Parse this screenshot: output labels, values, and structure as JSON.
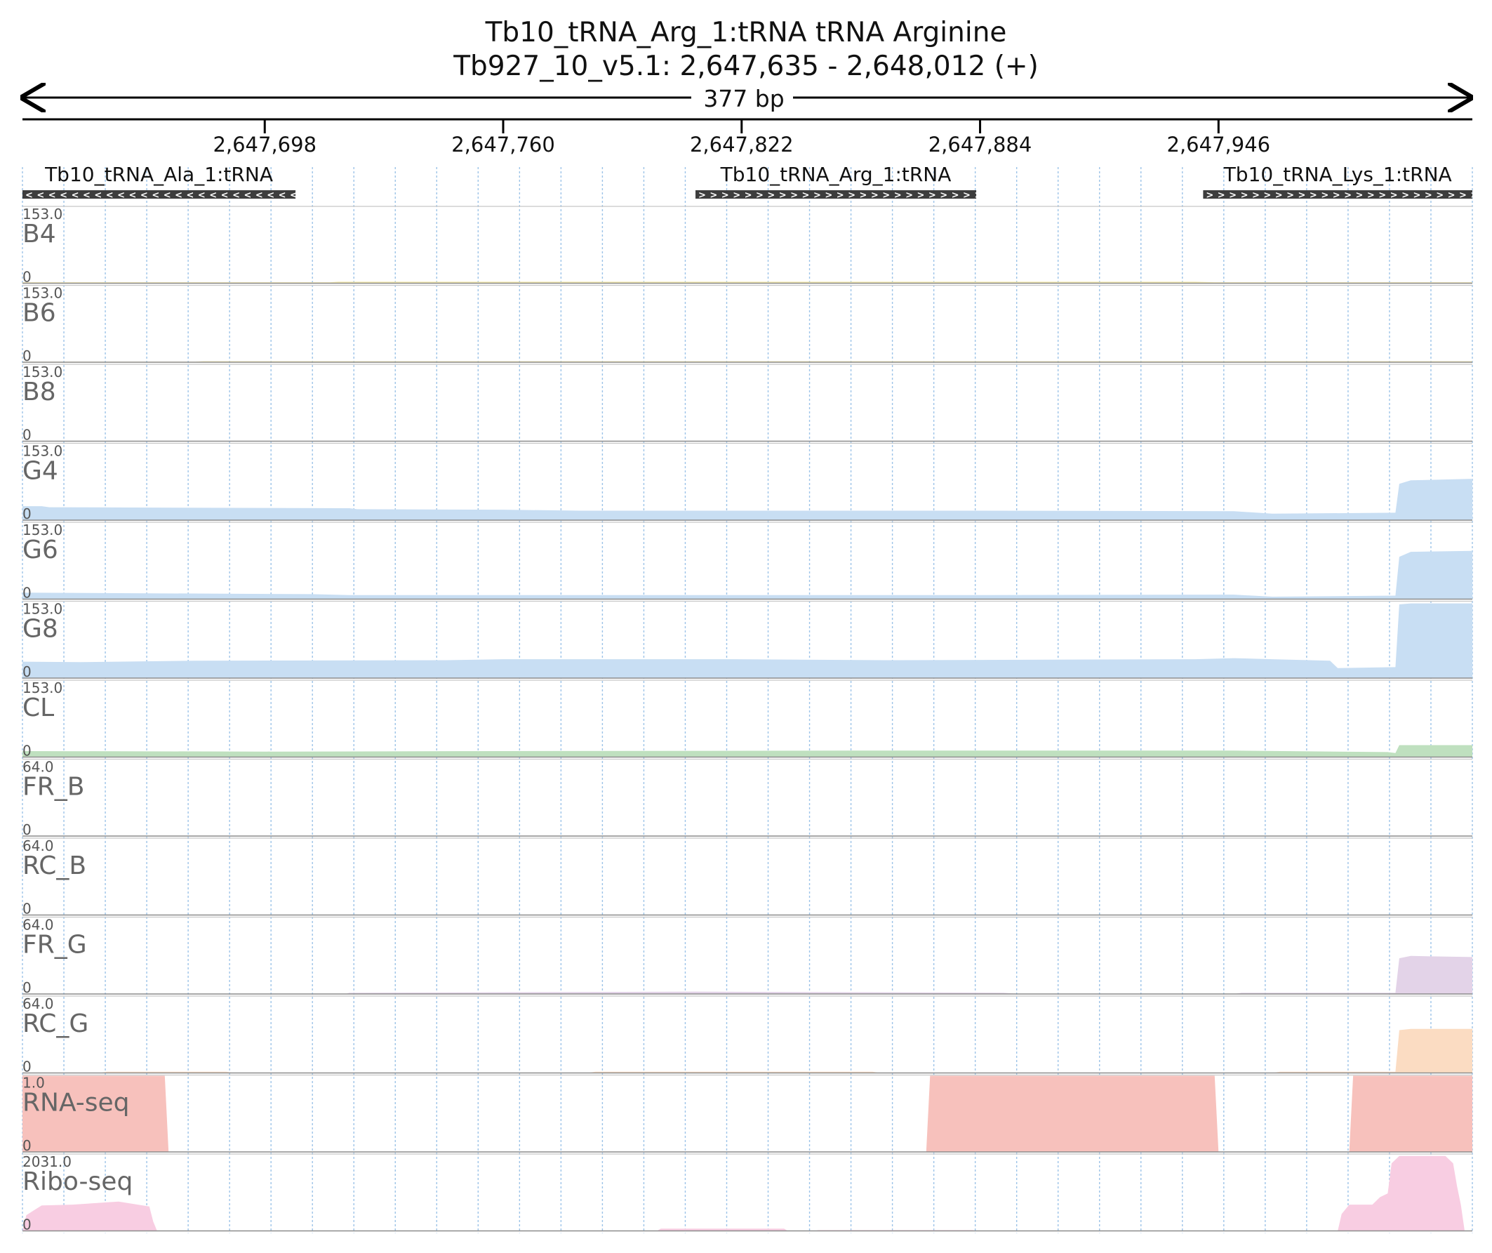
{
  "header": {
    "title": "Tb10_tRNA_Arg_1:tRNA  tRNA Arginine",
    "locus": "Tb927_10_v5.1: 2,647,635 - 2,648,012 (+)",
    "span_label": "377 bp"
  },
  "chart_data": {
    "type": "area",
    "x_range": [
      2647635,
      2648012
    ],
    "ruler_ticks": [
      2647698,
      2647760,
      2647822,
      2647884,
      2647946
    ],
    "ruler_tick_labels": [
      "2,647,698",
      "2,647,760",
      "2,647,822",
      "2,647,884",
      "2,647,946"
    ],
    "genes": [
      {
        "name": "Tb10_tRNA_Ala_1:tRNA",
        "start": 2647635,
        "end": 2647706,
        "strand": "-"
      },
      {
        "name": "Tb10_tRNA_Arg_1:tRNA",
        "start": 2647810,
        "end": 2647883,
        "strand": "+"
      },
      {
        "name": "Tb10_tRNA_Lys_1:tRNA",
        "start": 2647942,
        "end": 2648012,
        "strand": "+"
      }
    ],
    "tracks": [
      {
        "name": "B4",
        "max": "153.0",
        "min": "0",
        "color": "#f2e6a8",
        "points": [
          [
            2647635,
            2
          ],
          [
            2647715,
            2
          ],
          [
            2647717,
            3
          ],
          [
            2647940,
            3
          ],
          [
            2647945,
            2
          ],
          [
            2648012,
            2
          ]
        ]
      },
      {
        "name": "B6",
        "max": "153.0",
        "min": "0",
        "color": "#f2e6a8",
        "points": [
          [
            2647635,
            1
          ],
          [
            2647680,
            1
          ],
          [
            2647682,
            2
          ],
          [
            2648012,
            2
          ]
        ]
      },
      {
        "name": "B8",
        "max": "153.0",
        "min": "0",
        "color": "#f2e6a8",
        "points": [
          [
            2647635,
            0
          ],
          [
            2648012,
            0
          ]
        ]
      },
      {
        "name": "G4",
        "max": "153.0",
        "min": "0",
        "color": "#c8def3",
        "points": [
          [
            2647635,
            28
          ],
          [
            2647640,
            28
          ],
          [
            2647642,
            26
          ],
          [
            2647720,
            24
          ],
          [
            2647722,
            22
          ],
          [
            2647760,
            21
          ],
          [
            2647780,
            19
          ],
          [
            2647880,
            19
          ],
          [
            2647950,
            18
          ],
          [
            2647960,
            13
          ],
          [
            2647992,
            15
          ],
          [
            2647993,
            73
          ],
          [
            2647996,
            80
          ],
          [
            2648012,
            83
          ]
        ]
      },
      {
        "name": "G6",
        "max": "153.0",
        "min": "0",
        "color": "#c8def3",
        "points": [
          [
            2647635,
            13
          ],
          [
            2647660,
            12
          ],
          [
            2647710,
            10
          ],
          [
            2647720,
            8
          ],
          [
            2647880,
            8
          ],
          [
            2647950,
            9
          ],
          [
            2647960,
            5
          ],
          [
            2647992,
            7
          ],
          [
            2647993,
            85
          ],
          [
            2647996,
            95
          ],
          [
            2648012,
            97
          ]
        ]
      },
      {
        "name": "G8",
        "max": "153.0",
        "min": "0",
        "color": "#c8def3",
        "points": [
          [
            2647635,
            33
          ],
          [
            2647650,
            32
          ],
          [
            2647680,
            35
          ],
          [
            2647745,
            36
          ],
          [
            2647760,
            38
          ],
          [
            2647820,
            38
          ],
          [
            2647860,
            36
          ],
          [
            2647940,
            38
          ],
          [
            2647950,
            40
          ],
          [
            2647960,
            38
          ],
          [
            2647975,
            35
          ],
          [
            2647977,
            20
          ],
          [
            2647992,
            22
          ],
          [
            2647993,
            148
          ],
          [
            2647996,
            150
          ],
          [
            2648012,
            150
          ]
        ]
      },
      {
        "name": "CL",
        "max": "153.0",
        "min": "0",
        "color": "#bfe0bf",
        "points": [
          [
            2647635,
            12
          ],
          [
            2647700,
            11
          ],
          [
            2647760,
            12
          ],
          [
            2647850,
            13
          ],
          [
            2647950,
            13
          ],
          [
            2647990,
            10
          ],
          [
            2647992,
            8
          ],
          [
            2647993,
            24
          ],
          [
            2648012,
            24
          ]
        ]
      },
      {
        "name": "FR_B",
        "max": "64.0",
        "min": "0",
        "color": "#e3d3e8",
        "points": [
          [
            2647635,
            0
          ],
          [
            2648012,
            0
          ]
        ]
      },
      {
        "name": "RC_B",
        "max": "64.0",
        "min": "0",
        "color": "#fbdcc2",
        "points": [
          [
            2647635,
            0
          ],
          [
            2648012,
            0
          ]
        ]
      },
      {
        "name": "FR_G",
        "max": "64.0",
        "min": "0",
        "color": "#e3d3e8",
        "points": [
          [
            2647635,
            0
          ],
          [
            2647719,
            0
          ],
          [
            2647720,
            1
          ],
          [
            2647810,
            2
          ],
          [
            2647890,
            1
          ],
          [
            2647895,
            0
          ],
          [
            2647950,
            0
          ],
          [
            2647952,
            1
          ],
          [
            2647992,
            1
          ],
          [
            2647993,
            30
          ],
          [
            2647996,
            32
          ],
          [
            2648012,
            31
          ]
        ]
      },
      {
        "name": "RC_G",
        "max": "64.0",
        "min": "0",
        "color": "#fbdcc2",
        "points": [
          [
            2647635,
            0
          ],
          [
            2647655,
            0
          ],
          [
            2647657,
            1
          ],
          [
            2647688,
            1
          ],
          [
            2647690,
            0
          ],
          [
            2647782,
            0
          ],
          [
            2647784,
            1
          ],
          [
            2647856,
            1
          ],
          [
            2647858,
            0
          ],
          [
            2647960,
            0
          ],
          [
            2647962,
            1
          ],
          [
            2647992,
            1
          ],
          [
            2647993,
            36
          ],
          [
            2647996,
            37
          ],
          [
            2648012,
            37
          ]
        ]
      },
      {
        "name": "RNA-seq",
        "max": "1.0",
        "min": "0",
        "color": "#f7c1bc",
        "points": [
          [
            2647635,
            1
          ],
          [
            2647672,
            1
          ],
          [
            2647673,
            0
          ],
          [
            2647870,
            0
          ],
          [
            2647871,
            1
          ],
          [
            2647945,
            1
          ],
          [
            2647946,
            0
          ],
          [
            2647980,
            0
          ],
          [
            2647981,
            1
          ],
          [
            2648012,
            1
          ]
        ]
      },
      {
        "name": "Ribo-seq",
        "max": "2031.0",
        "min": "0",
        "color": "#f8cde2",
        "points": [
          [
            2647635,
            0
          ],
          [
            2647636,
            420
          ],
          [
            2647638,
            550
          ],
          [
            2647640,
            680
          ],
          [
            2647648,
            700
          ],
          [
            2647660,
            780
          ],
          [
            2647668,
            650
          ],
          [
            2647669,
            250
          ],
          [
            2647670,
            0
          ],
          [
            2647800,
            0
          ],
          [
            2647801,
            60
          ],
          [
            2647833,
            60
          ],
          [
            2647834,
            0
          ],
          [
            2647841,
            0
          ],
          [
            2647842,
            20
          ],
          [
            2647882,
            20
          ],
          [
            2647883,
            0
          ],
          [
            2647977,
            0
          ],
          [
            2647978,
            450
          ],
          [
            2647980,
            700
          ],
          [
            2647986,
            700
          ],
          [
            2647988,
            900
          ],
          [
            2647990,
            1000
          ],
          [
            2647991,
            1800
          ],
          [
            2647993,
            2000
          ],
          [
            2648005,
            2000
          ],
          [
            2648007,
            1800
          ],
          [
            2648008,
            1200
          ],
          [
            2648009,
            700
          ],
          [
            2648010,
            0
          ],
          [
            2648012,
            0
          ]
        ]
      }
    ]
  }
}
